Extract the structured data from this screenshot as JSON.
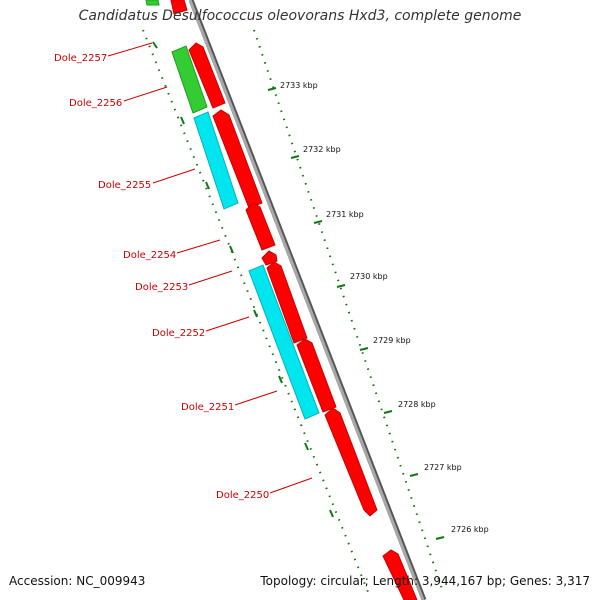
{
  "title": "Candidatus Desulfococcus oleovorans Hxd3, complete genome",
  "accession": "Accession: NC_009943",
  "summary": "Topology: circular; Length: 3,944,167 bp; Genes: 3,317",
  "colors": {
    "backbone": "#8a8a8a",
    "cds": "#ff0000",
    "cyan_feature": "#00e5ee",
    "green_feature": "#33cc33",
    "tick": "#117711",
    "label": "#cc0000"
  },
  "genes": [
    {
      "name": "Dole_2257"
    },
    {
      "name": "Dole_2256"
    },
    {
      "name": "Dole_2255"
    },
    {
      "name": "Dole_2254"
    },
    {
      "name": "Dole_2253"
    },
    {
      "name": "Dole_2252"
    },
    {
      "name": "Dole_2251"
    },
    {
      "name": "Dole_2250"
    }
  ],
  "ticks": [
    {
      "label": "2733 kbp"
    },
    {
      "label": "2732 kbp"
    },
    {
      "label": "2731 kbp"
    },
    {
      "label": "2730 kbp"
    },
    {
      "label": "2729 kbp"
    },
    {
      "label": "2728 kbp"
    },
    {
      "label": "2727 kbp"
    },
    {
      "label": "2726 kbp"
    }
  ]
}
